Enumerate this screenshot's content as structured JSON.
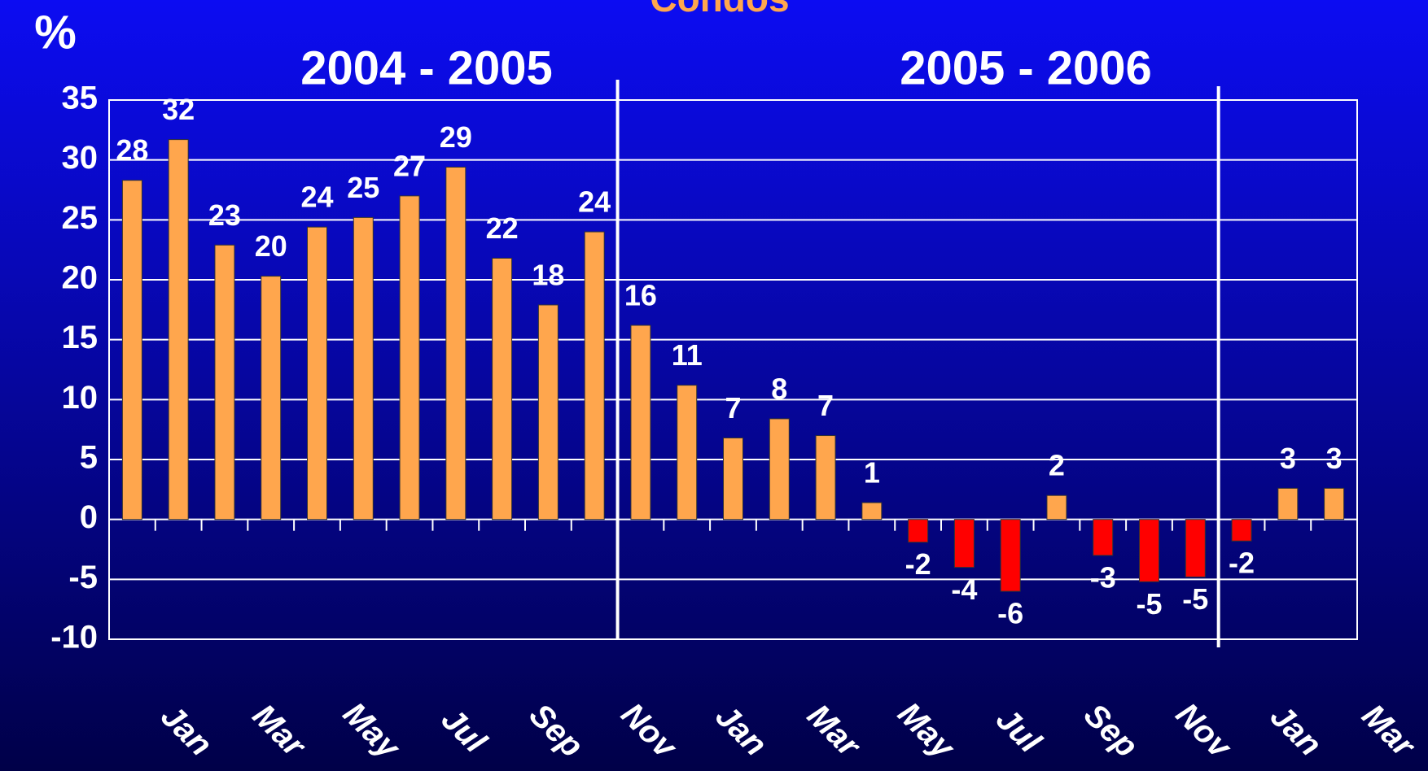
{
  "chart_data": {
    "type": "bar",
    "title": "Condos",
    "y_label": "%",
    "periods": [
      "2004 - 2005",
      "2005 - 2006"
    ],
    "categories": [
      null,
      "Jan",
      null,
      "Mar",
      null,
      "May",
      null,
      "Jul",
      null,
      "Sep",
      null,
      "Nov",
      null,
      "Jan",
      null,
      "Mar",
      null,
      "May",
      null,
      "Jul",
      null,
      "Sep",
      null,
      "Nov",
      null,
      "Jan",
      null,
      "Mar"
    ],
    "values": [
      28.3,
      31.7,
      22.9,
      20.3,
      24.4,
      25.2,
      27,
      29.4,
      21.8,
      17.9,
      24,
      16.2,
      11.2,
      6.8,
      8.4,
      7,
      1.4,
      -1.9,
      -4,
      -6,
      2,
      -3,
      -5.2,
      -4.8,
      -1.8,
      2.6,
      2.6,
      null
    ],
    "value_labels": [
      "28",
      "32",
      "23",
      "20",
      "24",
      "25",
      "27",
      "29",
      "22",
      "18",
      "24",
      "16",
      "11",
      "7",
      "8",
      "7",
      "1",
      "-2",
      "-4",
      "-6",
      "2",
      "-3",
      "-5",
      "-5",
      "-2",
      "3",
      "3",
      null
    ],
    "color": "#ffa64d",
    "negative_color": "#ff0000",
    "ylim": [
      -10,
      35
    ],
    "yticks": [
      -10,
      -5,
      0,
      5,
      10,
      15,
      20,
      25,
      30,
      35
    ],
    "grid": true
  }
}
